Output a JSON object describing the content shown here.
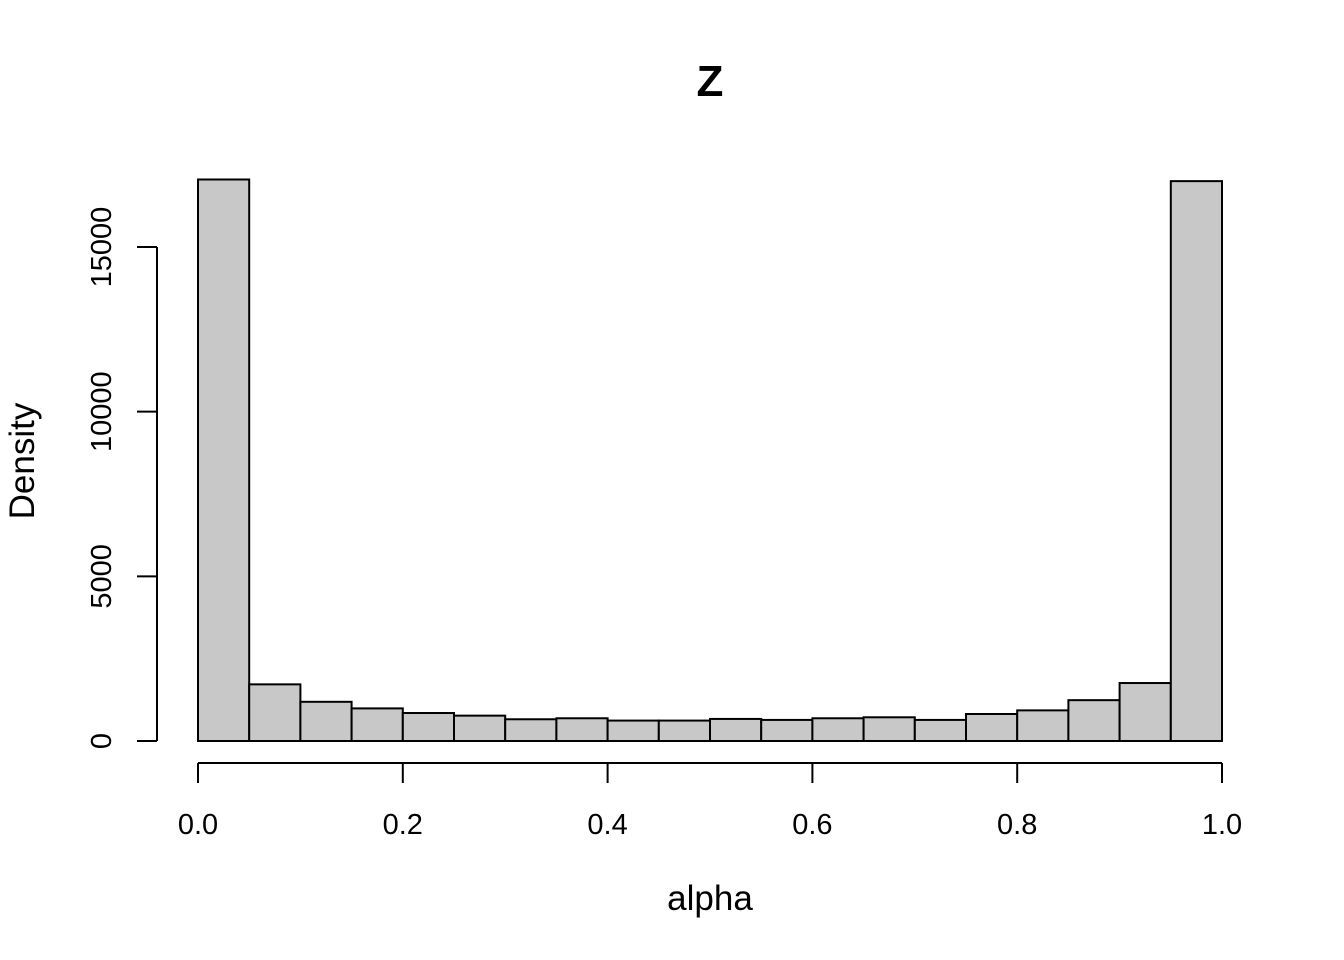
{
  "chart_data": {
    "type": "bar",
    "title": "Z",
    "xlabel": "alpha",
    "ylabel": "Density",
    "xlim": [
      0,
      1
    ],
    "ylim": [
      0,
      17000
    ],
    "bin_width": 0.05,
    "bin_edges": [
      0.0,
      0.05,
      0.1,
      0.15,
      0.2,
      0.25,
      0.3,
      0.35,
      0.4,
      0.45,
      0.5,
      0.55,
      0.6,
      0.65,
      0.7,
      0.75,
      0.8,
      0.85,
      0.9,
      0.95,
      1.0
    ],
    "values": [
      17050,
      1720,
      1190,
      990,
      850,
      770,
      660,
      690,
      620,
      620,
      670,
      640,
      690,
      720,
      640,
      820,
      930,
      1240,
      1760,
      17000
    ],
    "x_ticks": [
      {
        "value": 0.0,
        "label": "0.0"
      },
      {
        "value": 0.2,
        "label": "0.2"
      },
      {
        "value": 0.4,
        "label": "0.4"
      },
      {
        "value": 0.6,
        "label": "0.6"
      },
      {
        "value": 0.8,
        "label": "0.8"
      },
      {
        "value": 1.0,
        "label": "1.0"
      }
    ],
    "y_ticks": [
      {
        "value": 0,
        "label": "0"
      },
      {
        "value": 5000,
        "label": "5000"
      },
      {
        "value": 10000,
        "label": "10000"
      },
      {
        "value": 15000,
        "label": "15000"
      }
    ],
    "grid": false,
    "bar_color": "#c8c8c8",
    "edge_color": "#000000"
  }
}
